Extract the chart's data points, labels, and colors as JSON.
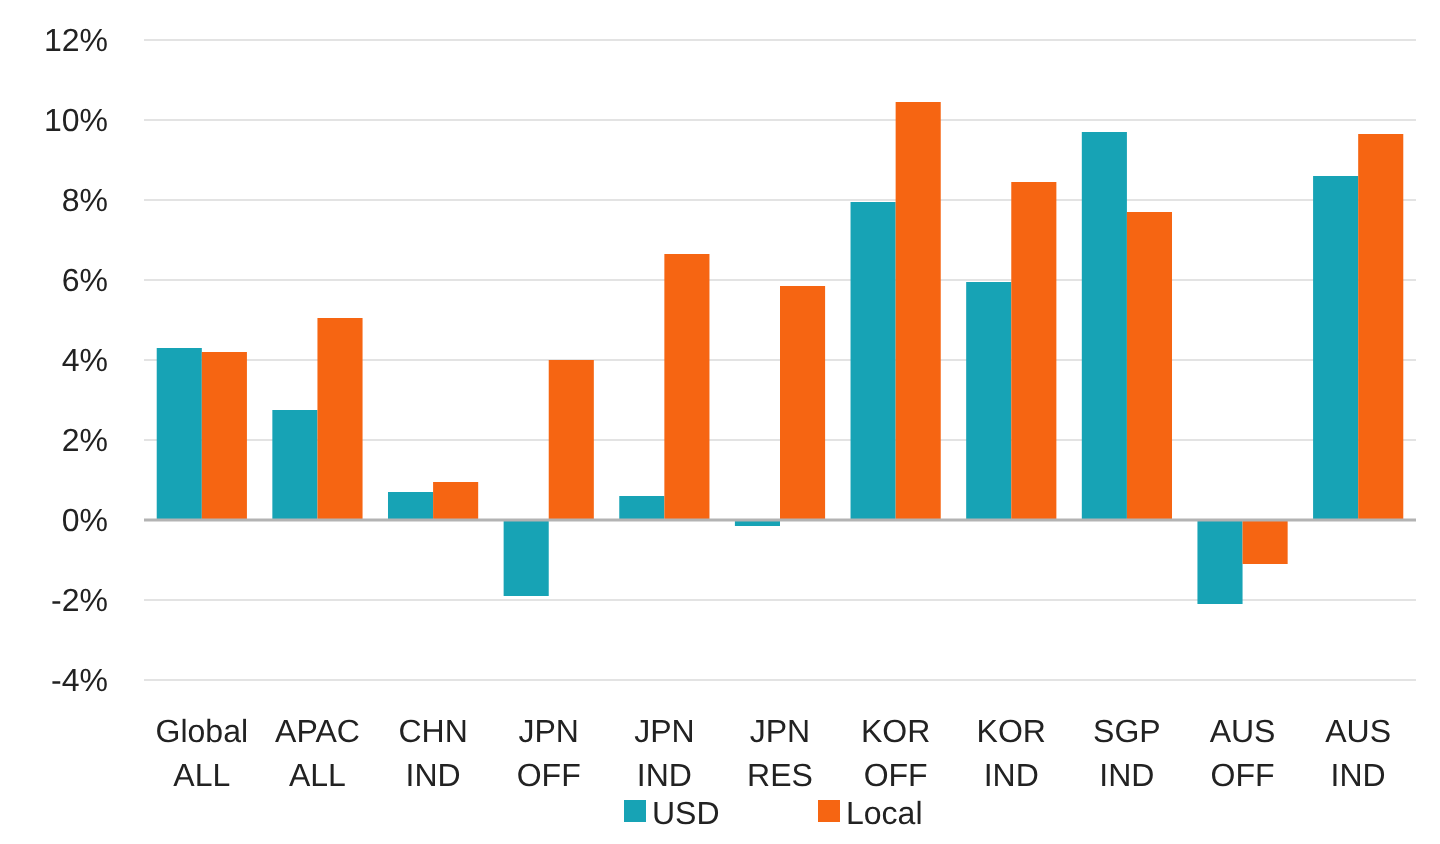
{
  "chart_data": {
    "type": "bar",
    "categories": [
      "Global\nALL",
      "APAC\nALL",
      "CHN\nIND",
      "JPN\nOFF",
      "JPN\nIND",
      "JPN\nRES",
      "KOR\nOFF",
      "KOR\nIND",
      "SGP\nIND",
      "AUS\nOFF",
      "AUS\nIND"
    ],
    "series": [
      {
        "name": "USD",
        "color": "#17a3b5",
        "values": [
          4.3,
          2.75,
          0.7,
          -1.9,
          0.6,
          -0.15,
          7.95,
          5.95,
          9.7,
          -2.1,
          8.6
        ]
      },
      {
        "name": "Local",
        "color": "#f66512",
        "values": [
          4.2,
          5.05,
          0.95,
          4.0,
          6.65,
          5.85,
          10.45,
          8.45,
          7.7,
          -1.1,
          9.65
        ]
      }
    ],
    "ylim": [
      -4,
      12
    ],
    "yticks": [
      {
        "value": -4,
        "label": "-4%"
      },
      {
        "value": -2,
        "label": "-2%"
      },
      {
        "value": 0,
        "label": "0%"
      },
      {
        "value": 2,
        "label": "2%"
      },
      {
        "value": 4,
        "label": "4%"
      },
      {
        "value": 6,
        "label": "6%"
      },
      {
        "value": 8,
        "label": "8%"
      },
      {
        "value": 10,
        "label": "10%"
      },
      {
        "value": 12,
        "label": "12%"
      }
    ],
    "grid": "y",
    "legend": "bottom"
  }
}
